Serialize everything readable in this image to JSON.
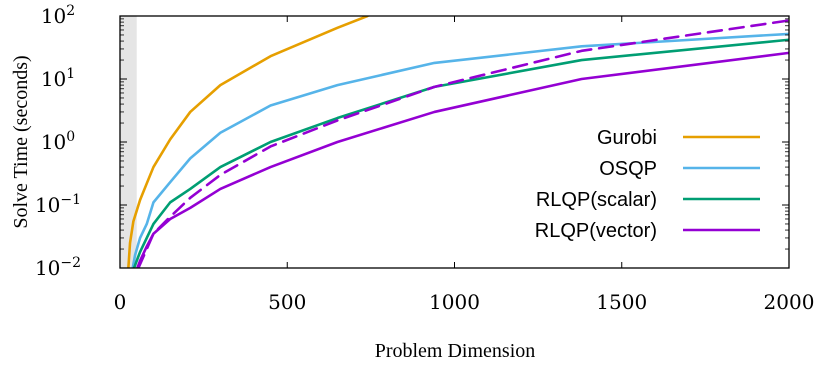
{
  "chart_data": {
    "type": "line",
    "title": "",
    "xlabel": "Problem Dimension",
    "ylabel": "Solve Time (seconds)",
    "xlim": [
      0,
      2000
    ],
    "ylim": [
      0.01,
      100
    ],
    "yscale": "log",
    "x_ticks": [
      {
        "value": 0,
        "label": "0"
      },
      {
        "value": 500,
        "label": "500"
      },
      {
        "value": 1000,
        "label": "1000"
      },
      {
        "value": 1500,
        "label": "1500"
      },
      {
        "value": 2000,
        "label": "2000"
      }
    ],
    "y_ticks": [
      {
        "value": 0.01,
        "base": "10",
        "exp": "−2"
      },
      {
        "value": 0.1,
        "base": "10",
        "exp": "−1"
      },
      {
        "value": 1,
        "base": "10",
        "exp": "0"
      },
      {
        "value": 10,
        "base": "10",
        "exp": "1"
      },
      {
        "value": 100,
        "base": "10",
        "exp": "2"
      }
    ],
    "shaded_region": {
      "x": [
        0,
        50
      ],
      "color": "#e5e5e5"
    },
    "legend_position": "right",
    "series": [
      {
        "name": "Gurobi",
        "color": "#e69f00",
        "dash": "solid",
        "x": [
          25,
          30,
          40,
          60,
          80,
          100,
          150,
          210,
          300,
          450,
          650,
          740
        ],
        "y": [
          0.01,
          0.025,
          0.055,
          0.12,
          0.22,
          0.4,
          1.1,
          3.0,
          8.0,
          23,
          65,
          100
        ]
      },
      {
        "name": "OSQP",
        "color": "#56b4e9",
        "dash": "solid",
        "x": [
          38,
          45,
          60,
          80,
          100,
          150,
          210,
          300,
          450,
          650,
          940,
          1380,
          2000
        ],
        "y": [
          0.01,
          0.016,
          0.03,
          0.05,
          0.11,
          0.23,
          0.55,
          1.4,
          3.8,
          8.0,
          18,
          33,
          52
        ]
      },
      {
        "name": "RLQP(scalar)",
        "color": "#009e73",
        "dash": "solid",
        "x": [
          42,
          60,
          80,
          100,
          150,
          210,
          300,
          450,
          650,
          940,
          1380,
          2000
        ],
        "y": [
          0.01,
          0.018,
          0.03,
          0.05,
          0.11,
          0.18,
          0.4,
          1.0,
          2.4,
          7.5,
          20,
          42
        ]
      },
      {
        "name": "RLQP(vector)",
        "color": "#9400d3",
        "dash": "solid",
        "x": [
          52,
          60,
          80,
          100,
          150,
          210,
          300,
          450,
          650,
          940,
          1380,
          2000
        ],
        "y": [
          0.01,
          0.013,
          0.022,
          0.035,
          0.06,
          0.09,
          0.18,
          0.4,
          1.0,
          3.0,
          10,
          26
        ]
      },
      {
        "name": "",
        "color": "#9400d3",
        "dash": "dashed",
        "x": [
          55,
          80,
          100,
          150,
          210,
          300,
          450,
          650,
          940,
          1380,
          2000
        ],
        "y": [
          0.01,
          0.02,
          0.035,
          0.065,
          0.13,
          0.3,
          0.85,
          2.2,
          7.5,
          28,
          85
        ]
      }
    ]
  }
}
